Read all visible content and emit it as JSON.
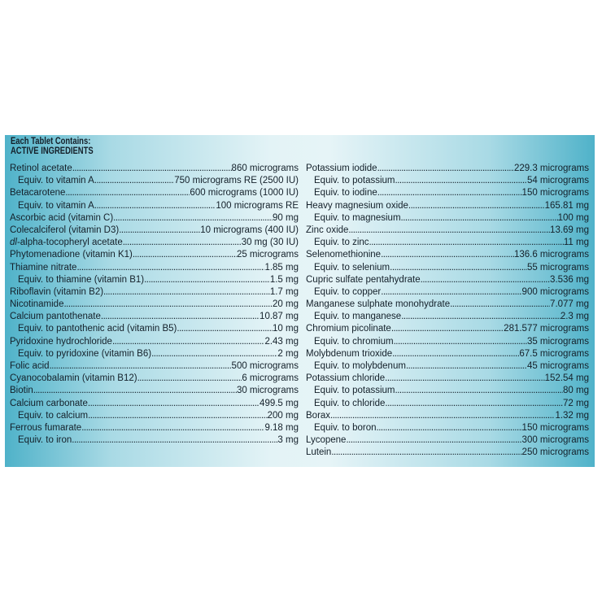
{
  "header": {
    "title": "Each Tablet Contains:",
    "subtitle": "ACTIVE INGREDIENTS"
  },
  "left_column": [
    {
      "name": "Retinol acetate",
      "value": "860 micrograms",
      "indent": false
    },
    {
      "name": "Equiv. to vitamin A",
      "value": "750 micrograms RE (2500 IU)",
      "indent": true
    },
    {
      "name": "Betacarotene",
      "value": "600 micrograms (1000 IU)",
      "indent": false
    },
    {
      "name": "Equiv. to vitamin A",
      "value": "100 micrograms RE",
      "indent": true
    },
    {
      "name": "Ascorbic acid (vitamin C)",
      "value": "90 mg",
      "indent": false
    },
    {
      "name": "Colecalciferol (vitamin D3)",
      "value": "10 micrograms (400 IU)",
      "indent": false
    },
    {
      "name": "dl-alpha-tocopheryl acetate",
      "value": "30 mg (30 IU)",
      "indent": false
    },
    {
      "name": "Phytomenadione (vitamin K1)",
      "value": "25 micrograms",
      "indent": false
    },
    {
      "name": "Thiamine nitrate",
      "value": "1.85 mg",
      "indent": false
    },
    {
      "name": "Equiv. to thiamine (vitamin B1)",
      "value": "1.5 mg",
      "indent": true
    },
    {
      "name": "Riboflavin (vitamin B2)",
      "value": "1.7 mg",
      "indent": false
    },
    {
      "name": "Nicotinamide",
      "value": "20 mg",
      "indent": false
    },
    {
      "name": "Calcium pantothenate",
      "value": "10.87 mg",
      "indent": false
    },
    {
      "name": "Equiv. to pantothenic acid (vitamin B5)",
      "value": "10 mg",
      "indent": true
    },
    {
      "name": "Pyridoxine hydrochloride",
      "value": "2.43 mg",
      "indent": false
    },
    {
      "name": "Equiv. to pyridoxine (vitamin B6)",
      "value": "2 mg",
      "indent": true
    },
    {
      "name": "Folic acid",
      "value": "500 micrograms",
      "indent": false
    },
    {
      "name": "Cyanocobalamin (vitamin B12)",
      "value": "6 micrograms",
      "indent": false
    },
    {
      "name": "Biotin",
      "value": "30 micrograms",
      "indent": false
    },
    {
      "name": "Calcium carbonate",
      "value": "499.5 mg",
      "indent": false
    },
    {
      "name": "Equiv. to calcium",
      "value": "200 mg",
      "indent": true
    },
    {
      "name": "Ferrous fumarate",
      "value": "9.18 mg",
      "indent": false
    },
    {
      "name": "Equiv. to iron",
      "value": "3 mg",
      "indent": true
    }
  ],
  "right_column": [
    {
      "name": "Potassium iodide",
      "value": "229.3 micrograms",
      "indent": false
    },
    {
      "name": "Equiv. to potassium",
      "value": "54 micrograms",
      "indent": true
    },
    {
      "name": "Equiv. to iodine",
      "value": "150 micrograms",
      "indent": true
    },
    {
      "name": "Heavy magnesium oxide",
      "value": "165.81 mg",
      "indent": false
    },
    {
      "name": "Equiv. to magnesium",
      "value": "100 mg",
      "indent": true
    },
    {
      "name": "Zinc oxide",
      "value": "13.69 mg",
      "indent": false
    },
    {
      "name": "Equiv. to zinc",
      "value": "11 mg",
      "indent": true
    },
    {
      "name": "Selenomethionine",
      "value": "136.6 micrograms",
      "indent": false
    },
    {
      "name": "Equiv. to selenium",
      "value": "55 micrograms",
      "indent": true
    },
    {
      "name": "Cupric sulfate pentahydrate",
      "value": "3.536 mg",
      "indent": false
    },
    {
      "name": "Equiv. to copper",
      "value": "900 micrograms",
      "indent": true
    },
    {
      "name": "Manganese sulphate monohydrate",
      "value": "7.077 mg",
      "indent": false
    },
    {
      "name": "Equiv. to manganese",
      "value": "2.3 mg",
      "indent": true
    },
    {
      "name": "Chromium picolinate",
      "value": "281.577 micrograms",
      "indent": false
    },
    {
      "name": "Equiv. to chromium",
      "value": "35 micrograms",
      "indent": true
    },
    {
      "name": "Molybdenum trioxide",
      "value": "67.5 micrograms",
      "indent": false
    },
    {
      "name": "Equiv. to molybdenum",
      "value": "45 micrograms",
      "indent": true
    },
    {
      "name": "Potassium chloride",
      "value": "152.54 mg",
      "indent": false
    },
    {
      "name": "Equiv. to potassium",
      "value": "80 mg",
      "indent": true
    },
    {
      "name": "Equiv. to chloride",
      "value": "72 mg",
      "indent": true
    },
    {
      "name": "Borax",
      "value": "1.32 mg",
      "indent": false
    },
    {
      "name": "Equiv. to boron",
      "value": "150 micrograms",
      "indent": true
    },
    {
      "name": "Lycopene",
      "value": "300 micrograms",
      "indent": false
    },
    {
      "name": "Lutein",
      "value": "250 micrograms",
      "indent": false
    }
  ]
}
